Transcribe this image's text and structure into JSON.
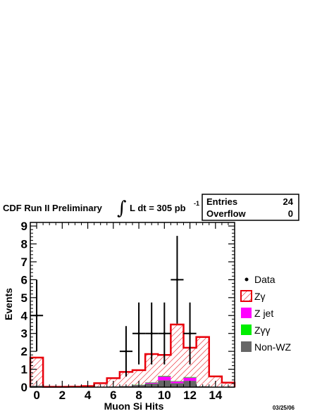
{
  "header": {
    "title_prefix": "CDF Run II Preliminary",
    "integral_sign": "∫",
    "lumi_text": "L dt = 305 pb",
    "lumi_exp": "-1"
  },
  "stats_box": {
    "entries_label": "Entries",
    "entries_value": "24",
    "overflow_label": "Overflow",
    "overflow_value": "0"
  },
  "date_stamp": "03/25/06",
  "chart_data": {
    "type": "bar",
    "xlabel": "Muon Si Hits",
    "ylabel": "Events",
    "xlim": [
      -0.5,
      15.5
    ],
    "ylim": [
      0,
      9.2
    ],
    "x_ticks": [
      "0",
      "2",
      "4",
      "6",
      "8",
      "10",
      "12",
      "14"
    ],
    "y_ticks": [
      "0",
      "1",
      "2",
      "3",
      "4",
      "5",
      "6",
      "7",
      "8",
      "9"
    ],
    "bin_centers": [
      0,
      1,
      2,
      3,
      4,
      5,
      6,
      7,
      8,
      9,
      10,
      11,
      12,
      13,
      14,
      15
    ],
    "series": [
      {
        "name": "Zγ",
        "style": "hatched",
        "color": "#e8000b",
        "values": [
          1.65,
          0.02,
          0.02,
          0.03,
          0.06,
          0.22,
          0.5,
          0.85,
          0.95,
          1.85,
          1.8,
          3.5,
          2.2,
          2.8,
          0.6,
          0.25
        ]
      },
      {
        "name": "Z jet",
        "style": "filled",
        "color": "#ff00ff",
        "values": [
          0,
          0,
          0,
          0,
          0,
          0,
          0,
          0,
          0.02,
          0.05,
          0.22,
          0.1,
          0.18,
          0,
          0,
          0
        ]
      },
      {
        "name": "Zγγ",
        "style": "filled",
        "color": "#00ee00",
        "values": [
          0,
          0,
          0,
          0,
          0,
          0,
          0,
          0,
          0.01,
          0.02,
          0.03,
          0.02,
          0.03,
          0,
          0,
          0
        ]
      },
      {
        "name": "Non-WZ",
        "style": "filled",
        "color": "#666666",
        "values": [
          0.08,
          0,
          0,
          0,
          0.02,
          0.02,
          0.03,
          0.06,
          0.1,
          0.2,
          0.38,
          0.22,
          0.35,
          0.05,
          0,
          0
        ]
      }
    ],
    "data_points": [
      {
        "x": 0,
        "y": 4,
        "err": 2.0
      },
      {
        "x": 7,
        "y": 2,
        "err": 1.41
      },
      {
        "x": 8,
        "y": 3,
        "err": 1.73
      },
      {
        "x": 9,
        "y": 3,
        "err": 1.73
      },
      {
        "x": 10,
        "y": 3,
        "err": 1.73
      },
      {
        "x": 11,
        "y": 6,
        "err": 2.45
      },
      {
        "x": 12,
        "y": 3,
        "err": 1.73
      }
    ],
    "legend": [
      {
        "label": "Data",
        "kind": "marker",
        "color": "#000000"
      },
      {
        "label": "Zγ",
        "kind": "hatched",
        "color": "#e8000b"
      },
      {
        "label": "Z jet",
        "kind": "filled",
        "color": "#ff00ff"
      },
      {
        "label": "Zγγ",
        "kind": "filled",
        "color": "#00ee00"
      },
      {
        "label": "Non-WZ",
        "kind": "filled",
        "color": "#666666"
      }
    ],
    "legend_placement": "right"
  }
}
